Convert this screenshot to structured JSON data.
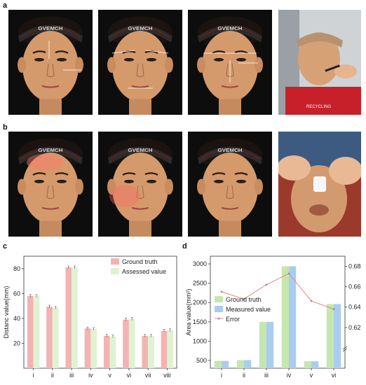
{
  "figure": {
    "panels": {
      "a": "a",
      "b": "b",
      "c": "c",
      "d": "d"
    },
    "headband_text": "GVEMCH",
    "jersey_text": "RECYCLING"
  },
  "chart_data": [
    {
      "panel": "c",
      "type": "bar",
      "categories": [
        "i",
        "ii",
        "iii",
        "iv",
        "v",
        "vi",
        "vii",
        "viii"
      ],
      "ylabel": "Distanc value(mm)",
      "ylim": [
        0,
        90
      ],
      "yticks": [
        20,
        40,
        60,
        80
      ],
      "legend_position": "top-right",
      "series": [
        {
          "name": "Ground truth",
          "color": "#f4b3b3",
          "values": [
            58,
            49.5,
            81,
            32,
            26,
            39,
            26,
            30
          ]
        },
        {
          "name": "Assessed value",
          "color": "#dff2d2",
          "values": [
            58,
            48.5,
            81,
            31.5,
            25.5,
            39.5,
            26,
            30.5
          ]
        }
      ]
    },
    {
      "panel": "d",
      "type": "bar",
      "categories": [
        "i",
        "ii",
        "iii",
        "iv",
        "v",
        "vi"
      ],
      "ylabel": "Area value(mm²)",
      "ylim": [
        300,
        3200
      ],
      "yticks": [
        500,
        1000,
        1500,
        2000,
        2500,
        3000
      ],
      "y2lim": [
        0.58,
        0.69
      ],
      "y2ticks": [
        "0.62",
        "0.64",
        "0.66",
        "0.68"
      ],
      "legend_position": "left",
      "series": [
        {
          "name": "Ground truth",
          "color": "#c6e6b0",
          "values": [
            490,
            510,
            1500,
            2940,
            480,
            1960
          ]
        },
        {
          "name": "Measured value",
          "color": "#a9cdef",
          "values": [
            490,
            510,
            1500,
            2940,
            480,
            1960
          ]
        },
        {
          "name": "Error",
          "type": "line",
          "axis": "right",
          "color": "#e58787",
          "values": [
            0.655,
            0.648,
            0.662,
            0.673,
            0.646,
            0.638
          ]
        }
      ]
    }
  ]
}
